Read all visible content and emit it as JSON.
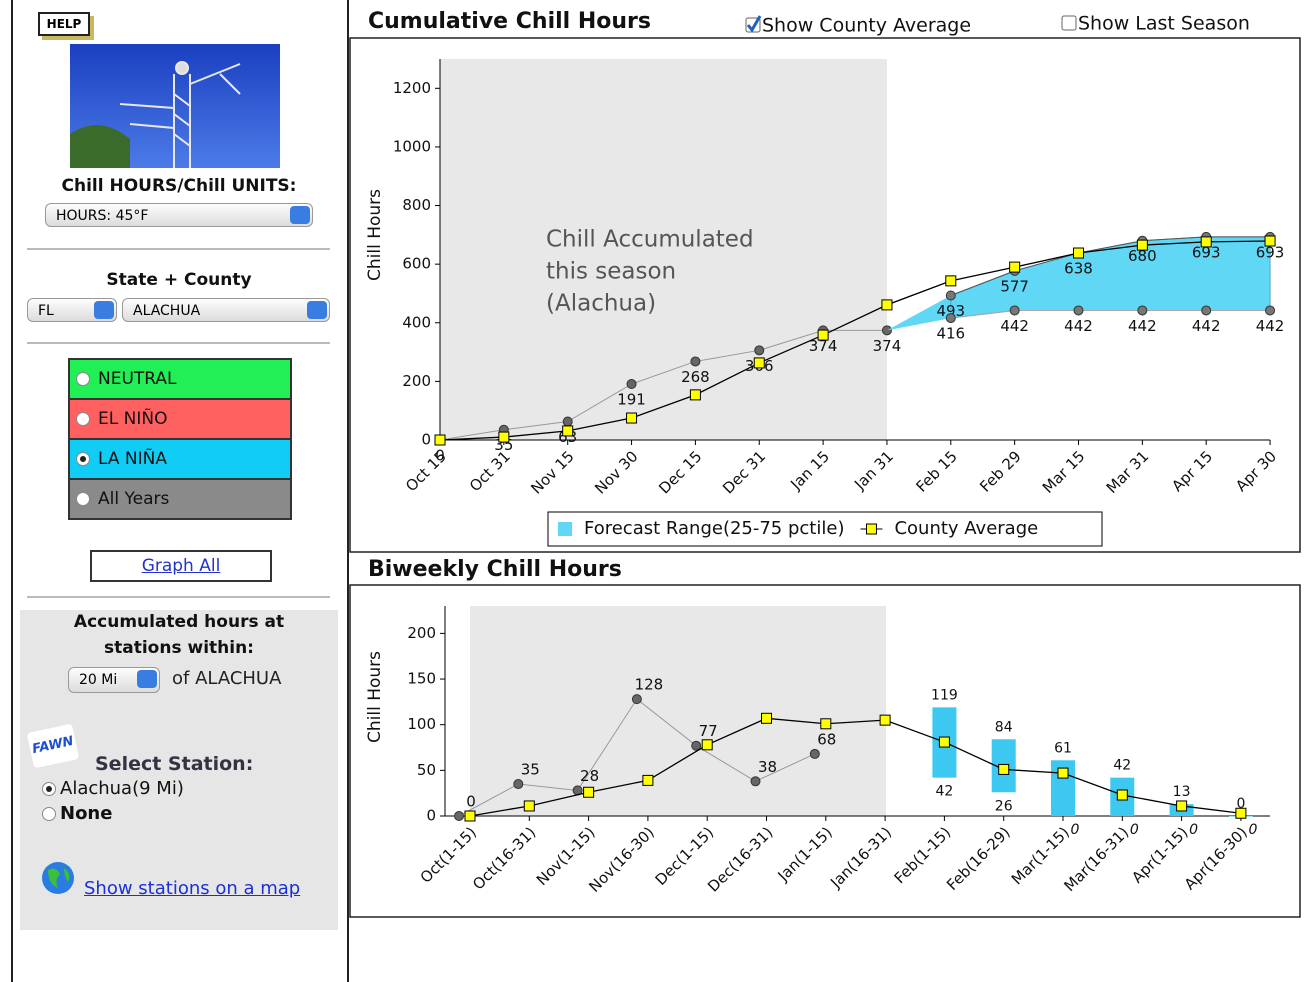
{
  "sidebar": {
    "help": "HELP",
    "units_label": "Chill HOURS/Chill UNITS:",
    "units_value": "HOURS: 45°F",
    "region_label": "State + County",
    "state": "FL",
    "county": "ALACHUA",
    "enso_options": [
      {
        "label": "NEUTRAL",
        "color": "#22ee55",
        "selected": false
      },
      {
        "label": "EL NIÑO",
        "color": "#ff6060",
        "selected": false
      },
      {
        "label": "LA NIÑA",
        "color": "#11ccf5",
        "selected": true
      },
      {
        "label": "All Years",
        "color": "#8a8a8a",
        "selected": false
      }
    ],
    "graph_all": "Graph All",
    "radius_label": [
      "Accumulated hours at",
      "stations within:"
    ],
    "radius": "20 Mi",
    "radius_suffix": "of ALACHUA",
    "fawn": "FAWN",
    "station_label": "Select Station:",
    "stations": [
      {
        "label": "Alachua(9 Mi)",
        "selected": true
      },
      {
        "label": "None",
        "selected": false
      }
    ],
    "map_link": "Show stations on a map"
  },
  "controls": {
    "show_county_average": {
      "label": "Show County Average",
      "checked": true
    },
    "show_last_season": {
      "label": "Show Last Season",
      "checked": false
    }
  },
  "chart_data": [
    {
      "type": "line",
      "title": "Cumulative Chill Hours",
      "y_label": "Chill Hours",
      "categories": [
        "Oct 15",
        "Oct 31",
        "Nov 15",
        "Nov 30",
        "Dec 15",
        "Dec 31",
        "Jan 15",
        "Jan 31",
        "Feb 15",
        "Feb 29",
        "Mar 15",
        "Mar 31",
        "Apr 15",
        "Apr 30"
      ],
      "ylim": [
        0,
        1300
      ],
      "yticks": [
        0,
        200,
        400,
        600,
        800,
        1000,
        1200
      ],
      "annotation": [
        "Chill Accumulated",
        "this season",
        "(Alachua)"
      ],
      "legend": true,
      "series": [
        {
          "marker": "circle",
          "color": "#666666",
          "line_color": "#999999",
          "data_labels": true,
          "values": [
            0,
            35,
            63,
            191,
            268,
            306,
            374,
            374,
            null,
            null,
            null,
            null,
            null,
            null
          ]
        },
        {
          "type": "range",
          "name": "Forecast Range(25-75 pctile)",
          "color": "#5fd7f5",
          "line_color": "#555555",
          "marker_color": "#777777",
          "data_labels": true,
          "low": [
            null,
            null,
            null,
            null,
            null,
            null,
            null,
            null,
            416,
            442,
            442,
            442,
            442,
            442
          ],
          "high": [
            null,
            null,
            null,
            null,
            null,
            null,
            null,
            null,
            493,
            577,
            638,
            680,
            693,
            693
          ]
        },
        {
          "name": "County Average",
          "marker": "square",
          "color": "#ffff00",
          "line_color": "#000000",
          "data_labels": false,
          "values": [
            0,
            10,
            31,
            75,
            154,
            263,
            358,
            461,
            543,
            590,
            638,
            665,
            676,
            679
          ]
        }
      ]
    },
    {
      "type": "line",
      "title": "Biweekly Chill Hours",
      "y_label": "Chill Hours",
      "categories": [
        "Oct(1-15)",
        "Oct(16-31)",
        "Nov(1-15)",
        "Nov(16-30)",
        "Dec(1-15)",
        "Dec(16-31)",
        "Jan(1-15)",
        "Jan(16-31)",
        "Feb(1-15)",
        "Feb(16-29)",
        "Mar(1-15)",
        "Mar(16-31)",
        "Apr(1-15)",
        "Apr(16-30)"
      ],
      "ylim": [
        0,
        230
      ],
      "yticks": [
        0,
        50,
        100,
        150,
        200
      ],
      "legend": false,
      "series": [
        {
          "marker": "circle",
          "color": "#666666",
          "line_color": "#999999",
          "data_labels": true,
          "values": [
            0,
            35,
            28,
            128,
            77,
            38,
            68,
            null,
            null,
            null,
            null,
            null,
            null,
            null
          ]
        },
        {
          "type": "bar",
          "color": "#3cc8f0",
          "data_labels": true,
          "low": [
            null,
            null,
            null,
            null,
            null,
            null,
            null,
            null,
            42,
            26,
            0,
            0,
            0,
            0
          ],
          "high": [
            null,
            null,
            null,
            null,
            null,
            null,
            null,
            null,
            119,
            84,
            61,
            42,
            13,
            0
          ]
        },
        {
          "marker": "square",
          "color": "#ffff00",
          "line_color": "#000000",
          "data_labels": false,
          "values": [
            0,
            11,
            26,
            39,
            78,
            107,
            101,
            105,
            81,
            51,
            47,
            23,
            11,
            3
          ]
        }
      ]
    }
  ]
}
